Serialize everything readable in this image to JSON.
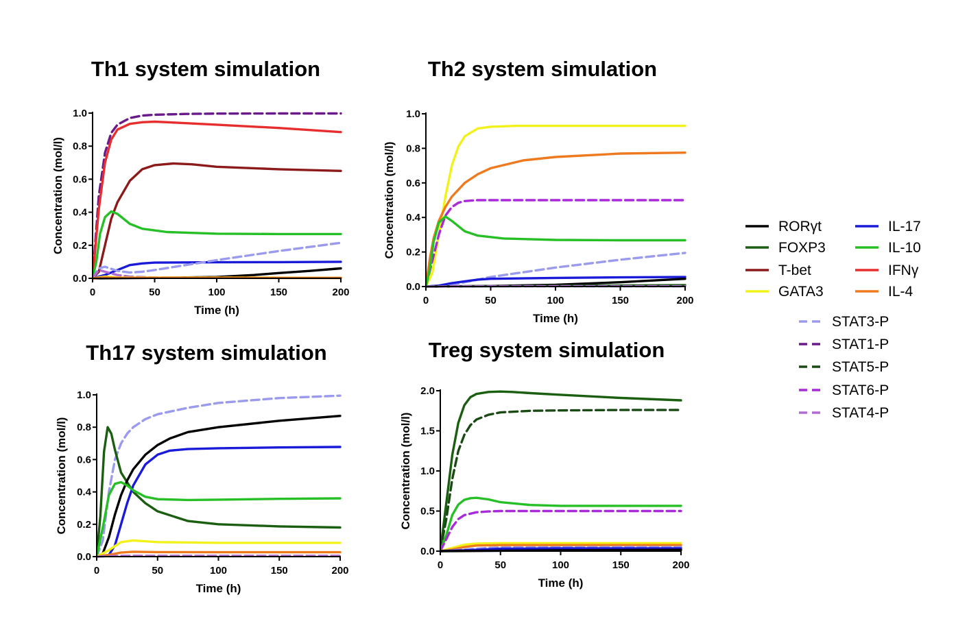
{
  "series_styles": {
    "RORγt": {
      "color": "#000000",
      "dash": false
    },
    "FOXP3": {
      "color": "#1a5e10",
      "dash": false
    },
    "T-bet": {
      "color": "#8c1a1a",
      "dash": false
    },
    "GATA3": {
      "color": "#f2f21a",
      "dash": false
    },
    "IL-17": {
      "color": "#1a1ad9",
      "dash": false
    },
    "IL-10": {
      "color": "#26bf26",
      "dash": false
    },
    "IFNγ": {
      "color": "#e62e2e",
      "dash": false
    },
    "IL-4": {
      "color": "#ee7a1f",
      "dash": false
    },
    "STAT3-P": {
      "color": "#9a9aee",
      "dash": true
    },
    "STAT1-P": {
      "color": "#6a1a8a",
      "dash": true
    },
    "STAT5-P": {
      "color": "#1a4a14",
      "dash": true
    },
    "STAT6-P": {
      "color": "#a82ad9",
      "dash": true
    },
    "STAT4-P": {
      "color": "#b06ad0",
      "dash": true
    }
  },
  "legend": {
    "columns": [
      [
        "RORγt",
        "FOXP3",
        "T-bet",
        "GATA3"
      ],
      [
        "IL-17",
        "IL-10",
        "IFNγ",
        "IL-4"
      ]
    ],
    "stat_column": [
      "STAT3-P",
      "STAT1-P",
      "STAT5-P",
      "STAT6-P",
      "STAT4-P"
    ]
  },
  "chart_data": [
    {
      "type": "line",
      "title": "Th1 system simulation",
      "xlabel": "Time (h)",
      "ylabel": "Concentration (mol/l)",
      "xlim": [
        0,
        200
      ],
      "ylim": [
        0,
        1.0
      ],
      "xticks": [
        "0",
        "50",
        "100",
        "150",
        "200"
      ],
      "yticks": [
        "0.0",
        "0.2",
        "0.4",
        "0.6",
        "0.8",
        "1.0"
      ],
      "series": [
        {
          "name": "STAT1-P",
          "x": [
            0,
            5,
            10,
            15,
            20,
            30,
            40,
            50,
            75,
            100,
            150,
            200
          ],
          "y": [
            0,
            0.5,
            0.76,
            0.88,
            0.93,
            0.97,
            0.985,
            0.99,
            0.995,
            0.997,
            0.998,
            0.998
          ]
        },
        {
          "name": "IFNγ",
          "x": [
            0,
            5,
            10,
            15,
            20,
            30,
            40,
            50,
            60,
            100,
            150,
            200
          ],
          "y": [
            0,
            0.42,
            0.7,
            0.84,
            0.9,
            0.935,
            0.945,
            0.948,
            0.945,
            0.93,
            0.91,
            0.885
          ]
        },
        {
          "name": "T-bet",
          "x": [
            0,
            5,
            10,
            15,
            20,
            30,
            40,
            50,
            65,
            80,
            100,
            150,
            200
          ],
          "y": [
            0,
            0.04,
            0.2,
            0.36,
            0.46,
            0.59,
            0.66,
            0.685,
            0.695,
            0.69,
            0.675,
            0.66,
            0.65
          ]
        },
        {
          "name": "IL-10",
          "x": [
            0,
            3,
            6,
            10,
            15,
            20,
            30,
            40,
            60,
            100,
            150,
            200
          ],
          "y": [
            0,
            0.1,
            0.27,
            0.37,
            0.405,
            0.39,
            0.33,
            0.3,
            0.28,
            0.27,
            0.268,
            0.268
          ]
        },
        {
          "name": "IL-17",
          "x": [
            0,
            10,
            20,
            30,
            40,
            50,
            100,
            150,
            200
          ],
          "y": [
            0,
            0.02,
            0.05,
            0.08,
            0.09,
            0.095,
            0.097,
            0.098,
            0.1
          ]
        },
        {
          "name": "STAT3-P",
          "x": [
            0,
            5,
            10,
            20,
            30,
            40,
            50,
            100,
            150,
            200
          ],
          "y": [
            0,
            0.06,
            0.07,
            0.045,
            0.035,
            0.04,
            0.05,
            0.11,
            0.165,
            0.215
          ]
        },
        {
          "name": "RORγt",
          "x": [
            0,
            50,
            100,
            130,
            150,
            175,
            200
          ],
          "y": [
            0,
            0.003,
            0.008,
            0.02,
            0.032,
            0.045,
            0.06
          ]
        },
        {
          "name": "STAT4-P",
          "x": [
            0,
            5,
            10,
            20,
            30,
            50,
            200
          ],
          "y": [
            0,
            0.05,
            0.04,
            0.02,
            0.01,
            0.005,
            0.003
          ]
        },
        {
          "name": "GATA3",
          "x": [
            0,
            10,
            20,
            200
          ],
          "y": [
            0,
            0.01,
            0.005,
            0.003
          ]
        },
        {
          "name": "IL-4",
          "x": [
            0,
            10,
            20,
            200
          ],
          "y": [
            0,
            0.005,
            0.003,
            0.002
          ]
        }
      ]
    },
    {
      "type": "line",
      "title": "Th2 system simulation",
      "xlabel": "Time (h)",
      "ylabel": "Concentration (mol/l)",
      "xlim": [
        0,
        200
      ],
      "ylim": [
        0,
        1.0
      ],
      "xticks": [
        "0",
        "50",
        "100",
        "150",
        "200"
      ],
      "yticks": [
        "0.0",
        "0.2",
        "0.4",
        "0.6",
        "0.8",
        "1.0"
      ],
      "series": [
        {
          "name": "GATA3",
          "x": [
            0,
            5,
            10,
            15,
            20,
            25,
            30,
            40,
            50,
            70,
            100,
            150,
            200
          ],
          "y": [
            0,
            0.08,
            0.3,
            0.52,
            0.7,
            0.81,
            0.87,
            0.915,
            0.925,
            0.93,
            0.93,
            0.93,
            0.93
          ]
        },
        {
          "name": "IL-4",
          "x": [
            0,
            3,
            6,
            10,
            15,
            20,
            30,
            40,
            50,
            75,
            100,
            150,
            200
          ],
          "y": [
            0,
            0.16,
            0.28,
            0.38,
            0.46,
            0.52,
            0.6,
            0.65,
            0.685,
            0.73,
            0.75,
            0.77,
            0.775
          ]
        },
        {
          "name": "STAT6-P",
          "x": [
            0,
            5,
            10,
            15,
            20,
            25,
            30,
            40,
            50,
            100,
            150,
            200
          ],
          "y": [
            0,
            0.15,
            0.3,
            0.41,
            0.46,
            0.485,
            0.495,
            0.5,
            0.5,
            0.5,
            0.5,
            0.5
          ]
        },
        {
          "name": "IL-10",
          "x": [
            0,
            3,
            6,
            10,
            15,
            20,
            30,
            40,
            60,
            100,
            150,
            200
          ],
          "y": [
            0,
            0.1,
            0.26,
            0.37,
            0.405,
            0.38,
            0.32,
            0.295,
            0.278,
            0.27,
            0.268,
            0.268
          ]
        },
        {
          "name": "STAT3-P",
          "x": [
            0,
            10,
            20,
            30,
            40,
            50,
            100,
            150,
            200
          ],
          "y": [
            0,
            0.005,
            0.01,
            0.025,
            0.04,
            0.055,
            0.11,
            0.155,
            0.195
          ]
        },
        {
          "name": "IL-17",
          "x": [
            0,
            10,
            20,
            30,
            40,
            50,
            100,
            150,
            200
          ],
          "y": [
            0,
            0.005,
            0.02,
            0.03,
            0.04,
            0.045,
            0.05,
            0.053,
            0.055
          ]
        },
        {
          "name": "RORγt",
          "x": [
            0,
            50,
            100,
            150,
            200
          ],
          "y": [
            0,
            0.003,
            0.01,
            0.025,
            0.045
          ]
        },
        {
          "name": "FOXP3",
          "x": [
            0,
            50,
            100,
            150,
            200
          ],
          "y": [
            0,
            0.002,
            0.004,
            0.006,
            0.008
          ]
        },
        {
          "name": "STAT4-P",
          "x": [
            0,
            50,
            200
          ],
          "y": [
            0,
            0.002,
            0.002
          ]
        }
      ]
    },
    {
      "type": "line",
      "title": "Th17 system simulation",
      "xlabel": "Time (h)",
      "ylabel": "Concentration (mol/l)",
      "xlim": [
        0,
        200
      ],
      "ylim": [
        0,
        1.0
      ],
      "xticks": [
        "0",
        "50",
        "100",
        "150",
        "200"
      ],
      "yticks": [
        "0.0",
        "0.2",
        "0.4",
        "0.6",
        "0.8",
        "1.0"
      ],
      "series": [
        {
          "name": "STAT3-P",
          "x": [
            0,
            5,
            10,
            15,
            20,
            25,
            30,
            40,
            50,
            75,
            100,
            150,
            200
          ],
          "y": [
            0,
            0.1,
            0.4,
            0.6,
            0.7,
            0.76,
            0.8,
            0.85,
            0.88,
            0.92,
            0.95,
            0.98,
            0.995
          ]
        },
        {
          "name": "FOXP3",
          "x": [
            0,
            3,
            6,
            9,
            12,
            15,
            20,
            30,
            40,
            50,
            75,
            100,
            150,
            200
          ],
          "y": [
            0,
            0.25,
            0.65,
            0.8,
            0.76,
            0.66,
            0.52,
            0.4,
            0.33,
            0.28,
            0.22,
            0.2,
            0.187,
            0.18
          ]
        },
        {
          "name": "RORγt",
          "x": [
            0,
            5,
            10,
            15,
            20,
            25,
            30,
            40,
            50,
            60,
            75,
            100,
            150,
            200
          ],
          "y": [
            0,
            0.02,
            0.12,
            0.26,
            0.38,
            0.47,
            0.54,
            0.63,
            0.69,
            0.73,
            0.77,
            0.8,
            0.84,
            0.87
          ]
        },
        {
          "name": "IL-17",
          "x": [
            0,
            10,
            15,
            20,
            25,
            30,
            40,
            50,
            60,
            75,
            100,
            150,
            200
          ],
          "y": [
            0,
            0.01,
            0.07,
            0.2,
            0.33,
            0.44,
            0.57,
            0.63,
            0.655,
            0.665,
            0.67,
            0.675,
            0.678
          ]
        },
        {
          "name": "IL-10",
          "x": [
            0,
            5,
            10,
            15,
            20,
            25,
            30,
            40,
            50,
            75,
            100,
            150,
            200
          ],
          "y": [
            0,
            0.18,
            0.38,
            0.45,
            0.46,
            0.44,
            0.41,
            0.37,
            0.355,
            0.35,
            0.352,
            0.357,
            0.36
          ]
        },
        {
          "name": "GATA3",
          "x": [
            0,
            10,
            20,
            30,
            50,
            100,
            150,
            200
          ],
          "y": [
            0,
            0.04,
            0.09,
            0.1,
            0.09,
            0.085,
            0.085,
            0.085
          ]
        },
        {
          "name": "IL-4",
          "x": [
            0,
            10,
            20,
            30,
            50,
            100,
            200
          ],
          "y": [
            0,
            0.01,
            0.025,
            0.03,
            0.028,
            0.027,
            0.027
          ]
        },
        {
          "name": "STAT4-P",
          "x": [
            0,
            20,
            200
          ],
          "y": [
            0,
            0.005,
            0.005
          ]
        }
      ]
    },
    {
      "type": "line",
      "title": "Treg system simulation",
      "xlabel": "Time (h)",
      "ylabel": "Concentration (mol/l)",
      "xlim": [
        0,
        200
      ],
      "ylim": [
        0,
        2.0
      ],
      "xticks": [
        "0",
        "50",
        "100",
        "150",
        "200"
      ],
      "yticks": [
        "0.0",
        "0.5",
        "1.0",
        "1.5",
        "2.0"
      ],
      "series": [
        {
          "name": "FOXP3",
          "x": [
            0,
            5,
            10,
            15,
            20,
            25,
            30,
            40,
            50,
            60,
            75,
            100,
            150,
            200
          ],
          "y": [
            0,
            0.6,
            1.2,
            1.6,
            1.82,
            1.92,
            1.96,
            1.985,
            1.99,
            1.985,
            1.97,
            1.95,
            1.91,
            1.88
          ]
        },
        {
          "name": "STAT5-P",
          "x": [
            0,
            5,
            10,
            15,
            20,
            25,
            30,
            40,
            50,
            75,
            100,
            150,
            200
          ],
          "y": [
            0,
            0.4,
            0.9,
            1.25,
            1.45,
            1.57,
            1.64,
            1.7,
            1.73,
            1.75,
            1.755,
            1.76,
            1.76
          ]
        },
        {
          "name": "IL-10",
          "x": [
            0,
            5,
            10,
            15,
            20,
            25,
            30,
            40,
            50,
            75,
            100,
            150,
            200
          ],
          "y": [
            0,
            0.2,
            0.45,
            0.58,
            0.64,
            0.66,
            0.665,
            0.645,
            0.61,
            0.575,
            0.565,
            0.565,
            0.565
          ]
        },
        {
          "name": "STAT6-P",
          "x": [
            0,
            5,
            10,
            15,
            20,
            30,
            40,
            50,
            100,
            150,
            200
          ],
          "y": [
            0,
            0.15,
            0.3,
            0.4,
            0.45,
            0.485,
            0.495,
            0.5,
            0.5,
            0.5,
            0.5
          ]
        },
        {
          "name": "GATA3",
          "x": [
            0,
            10,
            20,
            30,
            50,
            100,
            200
          ],
          "y": [
            0,
            0.04,
            0.08,
            0.095,
            0.1,
            0.1,
            0.1
          ]
        },
        {
          "name": "IL-4",
          "x": [
            0,
            10,
            20,
            30,
            50,
            100,
            200
          ],
          "y": [
            0,
            0.02,
            0.05,
            0.07,
            0.075,
            0.075,
            0.075
          ]
        },
        {
          "name": "STAT3-P",
          "x": [
            0,
            20,
            40,
            50,
            100,
            150,
            200
          ],
          "y": [
            0,
            0.02,
            0.04,
            0.045,
            0.048,
            0.05,
            0.05
          ]
        },
        {
          "name": "IL-17",
          "x": [
            0,
            20,
            50,
            100,
            200
          ],
          "y": [
            0,
            0.01,
            0.03,
            0.035,
            0.035
          ]
        },
        {
          "name": "RORγt",
          "x": [
            0,
            50,
            100,
            200
          ],
          "y": [
            0,
            0.005,
            0.01,
            0.015
          ]
        }
      ]
    }
  ]
}
